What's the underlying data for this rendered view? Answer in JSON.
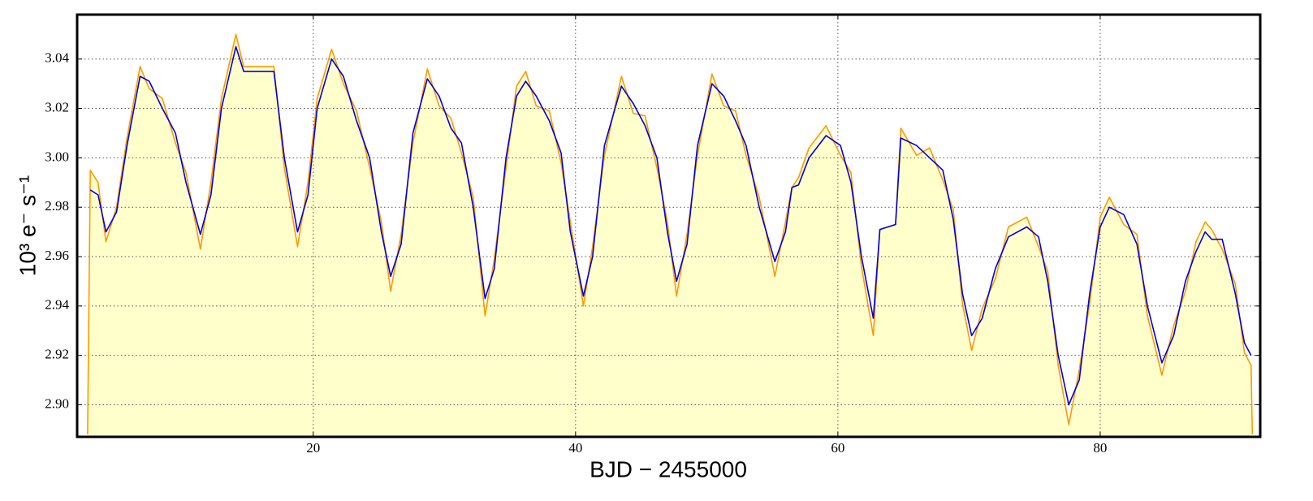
{
  "chart_data": {
    "type": "line",
    "xlabel": "BJD − 2455000",
    "ylabel": "10³ e⁻ s⁻¹",
    "x": [
      2.8,
      3.0,
      3.6,
      4.2,
      5.0,
      5.8,
      6.8,
      7.5,
      8.5,
      9.5,
      10.3,
      11.4,
      12.2,
      13.0,
      14.1,
      14.7,
      17.0,
      17.8,
      18.8,
      19.6,
      20.3,
      21.4,
      22.3,
      23.3,
      24.3,
      25.2,
      25.9,
      26.7,
      27.6,
      28.7,
      29.6,
      30.5,
      31.3,
      32.2,
      33.1,
      33.8,
      34.7,
      35.5,
      36.2,
      37.0,
      38.0,
      38.9,
      39.6,
      40.6,
      41.3,
      42.2,
      43.5,
      44.4,
      45.3,
      46.2,
      47.0,
      47.7,
      48.5,
      49.3,
      50.4,
      51.3,
      52.2,
      53.0,
      54.0,
      55.2,
      56.0,
      56.5,
      57.0,
      57.8,
      59.1,
      60.2,
      61.0,
      61.8,
      62.7,
      63.2,
      64.4,
      64.8,
      66.0,
      67.0,
      68.0,
      68.8,
      69.5,
      70.2,
      71.0,
      72.0,
      73.0,
      74.4,
      75.3,
      76.0,
      76.8,
      77.6,
      78.4,
      79.2,
      80.0,
      80.7,
      81.8,
      82.8,
      83.6,
      84.7,
      85.6,
      86.5,
      87.3,
      88.0,
      88.5,
      89.3,
      90.3,
      91.0,
      91.5,
      91.6
    ],
    "series": [
      {
        "color": "#ff9900",
        "fill": "#ffffcc",
        "values": [
          2.888,
          2.995,
          2.99,
          2.966,
          2.98,
          3.008,
          3.037,
          3.028,
          3.024,
          3.006,
          2.994,
          2.963,
          2.99,
          3.024,
          3.05,
          3.037,
          3.037,
          2.996,
          2.964,
          2.99,
          3.024,
          3.044,
          3.03,
          3.019,
          2.996,
          2.974,
          2.946,
          2.969,
          3.006,
          3.036,
          3.021,
          3.016,
          3.002,
          2.984,
          2.936,
          2.959,
          2.996,
          3.029,
          3.035,
          3.021,
          3.019,
          2.998,
          2.974,
          2.94,
          2.964,
          3.001,
          3.033,
          3.018,
          3.017,
          2.996,
          2.974,
          2.944,
          2.969,
          3.001,
          3.034,
          3.021,
          3.019,
          3.001,
          2.984,
          2.952,
          2.974,
          2.988,
          2.992,
          3.004,
          3.013,
          3.001,
          2.994,
          2.956,
          2.928,
          2.971,
          2.973,
          3.012,
          3.001,
          3.004,
          2.991,
          2.979,
          2.941,
          2.922,
          2.939,
          2.951,
          2.972,
          2.976,
          2.964,
          2.954,
          2.916,
          2.892,
          2.914,
          2.941,
          2.976,
          2.984,
          2.973,
          2.969,
          2.936,
          2.912,
          2.932,
          2.946,
          2.966,
          2.974,
          2.971,
          2.963,
          2.949,
          2.921,
          2.916,
          2.888
        ]
      },
      {
        "color": "#0000dd",
        "values": [
          null,
          2.987,
          2.985,
          2.97,
          2.978,
          3.005,
          3.033,
          3.031,
          3.02,
          3.01,
          2.99,
          2.969,
          2.985,
          3.02,
          3.045,
          3.035,
          3.035,
          3.0,
          2.97,
          2.985,
          3.02,
          3.04,
          3.033,
          3.015,
          3.0,
          2.97,
          2.952,
          2.965,
          3.01,
          3.032,
          3.025,
          3.012,
          3.006,
          2.98,
          2.943,
          2.955,
          3.0,
          3.025,
          3.031,
          3.025,
          3.015,
          3.002,
          2.97,
          2.944,
          2.96,
          3.005,
          3.029,
          3.022,
          3.013,
          3.0,
          2.97,
          2.95,
          2.965,
          3.005,
          3.03,
          3.025,
          3.015,
          3.005,
          2.98,
          2.958,
          2.97,
          2.988,
          2.989,
          3.0,
          3.009,
          3.005,
          2.99,
          2.96,
          2.935,
          2.971,
          2.973,
          3.008,
          3.005,
          3.0,
          2.995,
          2.975,
          2.945,
          2.928,
          2.935,
          2.955,
          2.968,
          2.972,
          2.968,
          2.95,
          2.92,
          2.9,
          2.91,
          2.945,
          2.972,
          2.98,
          2.977,
          2.965,
          2.94,
          2.917,
          2.928,
          2.95,
          2.962,
          2.97,
          2.967,
          2.967,
          2.945,
          2.925,
          2.92,
          null
        ]
      }
    ],
    "xlim": [
      2,
      92.2
    ],
    "xticks": [
      20,
      40,
      60,
      80
    ],
    "ylim": [
      2.887,
      3.058
    ],
    "yticks": [
      {
        "value": 2.9,
        "label": "2.90"
      },
      2.92,
      2.94,
      2.96,
      2.98,
      {
        "value": 3,
        "label": "3.00"
      },
      3.02,
      3.04
    ],
    "grid": true
  }
}
